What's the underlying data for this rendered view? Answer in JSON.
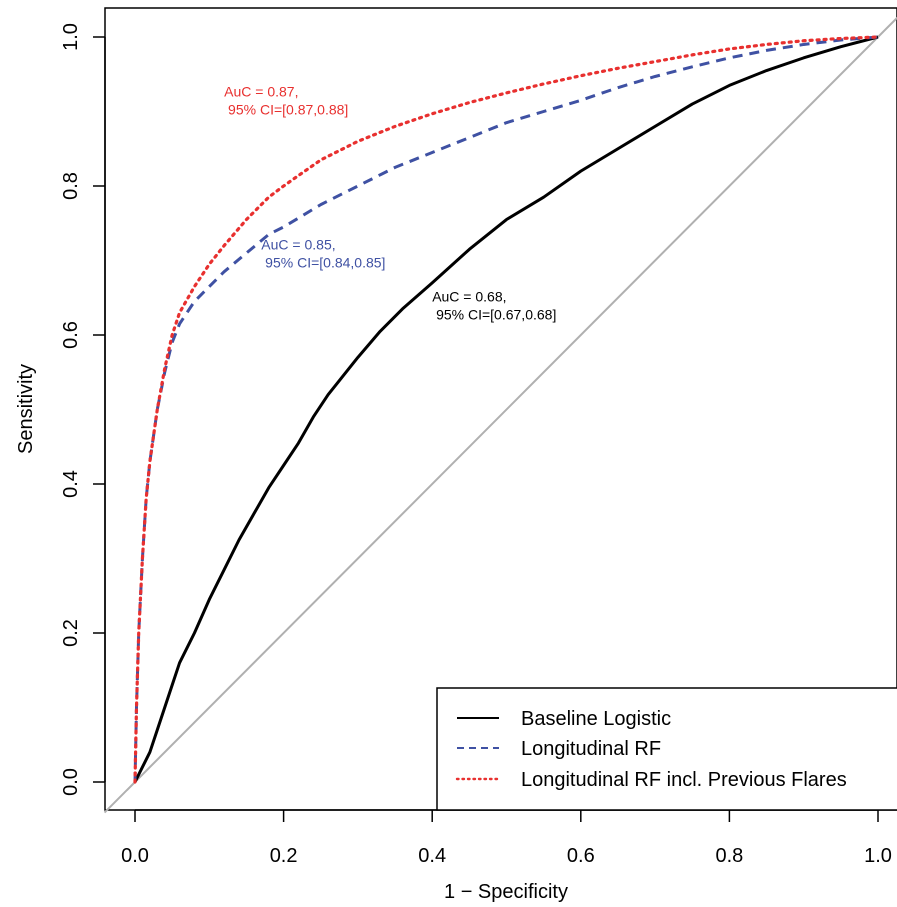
{
  "chart_data": {
    "type": "line",
    "title": "",
    "xlabel": "1 − Specificity",
    "ylabel": "Sensitivity",
    "xlim": [
      0,
      1
    ],
    "ylim": [
      0,
      1
    ],
    "x_ticks": [
      "0.0",
      "0.2",
      "0.4",
      "0.6",
      "0.8",
      "1.0"
    ],
    "y_ticks": [
      "0.0",
      "0.2",
      "0.4",
      "0.6",
      "0.8",
      "1.0"
    ],
    "grid": false,
    "legend_position": "bottom-right",
    "reference_line": {
      "from": [
        0,
        0
      ],
      "to": [
        1,
        1
      ],
      "color": "#b0b0b0"
    },
    "series": [
      {
        "name": "Baseline Logistic",
        "color": "#000000",
        "style": "solid",
        "points": [
          [
            0,
            0
          ],
          [
            0.01,
            0.02
          ],
          [
            0.02,
            0.04
          ],
          [
            0.03,
            0.07
          ],
          [
            0.04,
            0.1
          ],
          [
            0.05,
            0.13
          ],
          [
            0.06,
            0.16
          ],
          [
            0.08,
            0.2
          ],
          [
            0.1,
            0.245
          ],
          [
            0.12,
            0.285
          ],
          [
            0.14,
            0.325
          ],
          [
            0.16,
            0.36
          ],
          [
            0.18,
            0.395
          ],
          [
            0.2,
            0.425
          ],
          [
            0.22,
            0.455
          ],
          [
            0.24,
            0.49
          ],
          [
            0.26,
            0.52
          ],
          [
            0.28,
            0.545
          ],
          [
            0.3,
            0.57
          ],
          [
            0.33,
            0.605
          ],
          [
            0.36,
            0.635
          ],
          [
            0.4,
            0.67
          ],
          [
            0.45,
            0.715
          ],
          [
            0.5,
            0.755
          ],
          [
            0.55,
            0.785
          ],
          [
            0.6,
            0.82
          ],
          [
            0.65,
            0.85
          ],
          [
            0.7,
            0.88
          ],
          [
            0.75,
            0.91
          ],
          [
            0.8,
            0.935
          ],
          [
            0.85,
            0.955
          ],
          [
            0.9,
            0.972
          ],
          [
            0.95,
            0.987
          ],
          [
            1,
            1
          ]
        ]
      },
      {
        "name": "Longitudinal RF",
        "color": "#3f51a3",
        "style": "dashed",
        "points": [
          [
            0,
            0
          ],
          [
            0.002,
            0.1
          ],
          [
            0.005,
            0.2
          ],
          [
            0.01,
            0.3
          ],
          [
            0.015,
            0.38
          ],
          [
            0.02,
            0.43
          ],
          [
            0.03,
            0.5
          ],
          [
            0.04,
            0.55
          ],
          [
            0.05,
            0.59
          ],
          [
            0.06,
            0.615
          ],
          [
            0.08,
            0.645
          ],
          [
            0.1,
            0.665
          ],
          [
            0.12,
            0.685
          ],
          [
            0.15,
            0.71
          ],
          [
            0.18,
            0.735
          ],
          [
            0.2,
            0.745
          ],
          [
            0.25,
            0.775
          ],
          [
            0.3,
            0.8
          ],
          [
            0.35,
            0.825
          ],
          [
            0.4,
            0.845
          ],
          [
            0.45,
            0.865
          ],
          [
            0.5,
            0.885
          ],
          [
            0.55,
            0.9
          ],
          [
            0.6,
            0.915
          ],
          [
            0.65,
            0.932
          ],
          [
            0.7,
            0.947
          ],
          [
            0.75,
            0.96
          ],
          [
            0.8,
            0.972
          ],
          [
            0.85,
            0.982
          ],
          [
            0.9,
            0.99
          ],
          [
            0.95,
            0.996
          ],
          [
            1,
            1
          ]
        ]
      },
      {
        "name": "Longitudinal RF incl. Previous Flares",
        "color": "#e8302f",
        "style": "dotted",
        "points": [
          [
            0,
            0
          ],
          [
            0.002,
            0.1
          ],
          [
            0.005,
            0.2
          ],
          [
            0.01,
            0.3
          ],
          [
            0.015,
            0.38
          ],
          [
            0.02,
            0.43
          ],
          [
            0.03,
            0.5
          ],
          [
            0.04,
            0.555
          ],
          [
            0.05,
            0.6
          ],
          [
            0.06,
            0.63
          ],
          [
            0.08,
            0.665
          ],
          [
            0.1,
            0.695
          ],
          [
            0.12,
            0.72
          ],
          [
            0.15,
            0.755
          ],
          [
            0.18,
            0.785
          ],
          [
            0.2,
            0.8
          ],
          [
            0.25,
            0.835
          ],
          [
            0.3,
            0.86
          ],
          [
            0.35,
            0.88
          ],
          [
            0.4,
            0.897
          ],
          [
            0.45,
            0.912
          ],
          [
            0.5,
            0.925
          ],
          [
            0.55,
            0.937
          ],
          [
            0.6,
            0.948
          ],
          [
            0.65,
            0.958
          ],
          [
            0.7,
            0.967
          ],
          [
            0.75,
            0.976
          ],
          [
            0.8,
            0.984
          ],
          [
            0.85,
            0.99
          ],
          [
            0.9,
            0.995
          ],
          [
            0.95,
            0.998
          ],
          [
            1,
            1
          ]
        ]
      }
    ],
    "annotations": [
      {
        "series": "Longitudinal RF incl. Previous Flares",
        "line1": "AuC = 0.87,",
        "line2": " 95% CI=[0.87,0.88]",
        "color": "#e8302f",
        "x": 0.12,
        "y": 0.92
      },
      {
        "series": "Longitudinal RF",
        "line1": "AuC = 0.85,",
        "line2": " 95% CI=[0.84,0.85]",
        "color": "#3f51a3",
        "x": 0.17,
        "y": 0.715
      },
      {
        "series": "Baseline Logistic",
        "line1": "AuC = 0.68,",
        "line2": " 95% CI=[0.67,0.68]",
        "color": "#000000",
        "x": 0.4,
        "y": 0.645
      }
    ]
  }
}
